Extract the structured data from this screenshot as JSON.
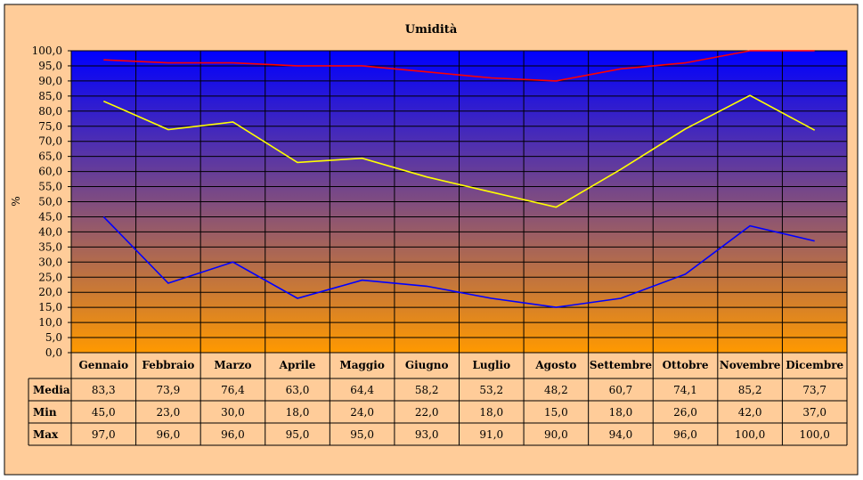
{
  "colors": {
    "background": "#FFCC99",
    "gradient_top": "#0000FF",
    "gradient_bottom": "#FF9900",
    "media_line": "#FFFF00",
    "min_line": "#0000FF",
    "max_line": "#FF0000"
  },
  "chart_data": {
    "type": "line",
    "title": "Umidità",
    "ylabel": "%",
    "xlabel": "",
    "ylim": [
      0,
      100
    ],
    "y_ticks": [
      "0,0",
      "5,0",
      "10,0",
      "15,0",
      "20,0",
      "25,0",
      "30,0",
      "35,0",
      "40,0",
      "45,0",
      "50,0",
      "55,0",
      "60,0",
      "65,0",
      "70,0",
      "75,0",
      "80,0",
      "85,0",
      "90,0",
      "95,0",
      "100,0"
    ],
    "grid": true,
    "legend": "data table below plot",
    "categories": [
      "Gennaio",
      "Febbraio",
      "Marzo",
      "Aprile",
      "Maggio",
      "Giugno",
      "Luglio",
      "Agosto",
      "Settembre",
      "Ottobre",
      "Novembre",
      "Dicembre"
    ],
    "series": [
      {
        "name": "Media",
        "color": "#FFFF00",
        "values": [
          83.3,
          73.9,
          76.4,
          63.0,
          64.4,
          58.2,
          53.2,
          48.2,
          60.7,
          74.1,
          85.2,
          73.7
        ],
        "labels": [
          "83,3",
          "73,9",
          "76,4",
          "63,0",
          "64,4",
          "58,2",
          "53,2",
          "48,2",
          "60,7",
          "74,1",
          "85,2",
          "73,7"
        ]
      },
      {
        "name": "Min",
        "color": "#0000FF",
        "values": [
          45.0,
          23.0,
          30.0,
          18.0,
          24.0,
          22.0,
          18.0,
          15.0,
          18.0,
          26.0,
          42.0,
          37.0
        ],
        "labels": [
          "45,0",
          "23,0",
          "30,0",
          "18,0",
          "24,0",
          "22,0",
          "18,0",
          "15,0",
          "18,0",
          "26,0",
          "42,0",
          "37,0"
        ]
      },
      {
        "name": "Max",
        "color": "#FF0000",
        "values": [
          97.0,
          96.0,
          96.0,
          95.0,
          95.0,
          93.0,
          91.0,
          90.0,
          94.0,
          96.0,
          100.0,
          100.0
        ],
        "labels": [
          "97,0",
          "96,0",
          "96,0",
          "95,0",
          "95,0",
          "93,0",
          "91,0",
          "90,0",
          "94,0",
          "96,0",
          "100,0",
          "100,0"
        ]
      }
    ]
  }
}
